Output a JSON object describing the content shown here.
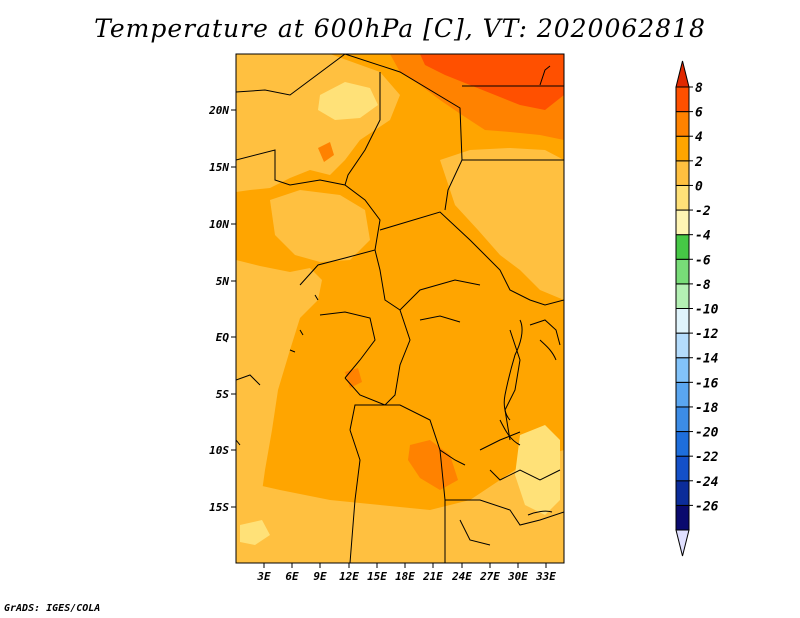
{
  "title": "Temperature at 600hPa [C], VT: 2020062818",
  "credit": "GrADS: IGES/COLA",
  "map": {
    "lat_labels": [
      "20N",
      "15N",
      "10N",
      "5N",
      "EQ",
      "5S",
      "10S",
      "15S"
    ],
    "lon_labels": [
      "3E",
      "6E",
      "9E",
      "12E",
      "15E",
      "18E",
      "21E",
      "24E",
      "27E",
      "30E",
      "33E"
    ]
  },
  "colorbar": {
    "levels": [
      "8",
      "6",
      "4",
      "2",
      "0",
      "-2",
      "-4",
      "-6",
      "-8",
      "-10",
      "-12",
      "-14",
      "-16",
      "-18",
      "-20",
      "-22",
      "-24",
      "-26"
    ],
    "colors": [
      "#e0e0ff",
      "#0a0a6e",
      "#0b2c9a",
      "#1450c8",
      "#1e6edc",
      "#3c8ce6",
      "#5aa6f0",
      "#82c3fa",
      "#b4dcfc",
      "#e0f4fc",
      "#b4f0b4",
      "#78dc78",
      "#46c846",
      "#fff5b4",
      "#ffe178",
      "#ffc040",
      "#ffa500",
      "#ff8200",
      "#ff5000",
      "#e02800"
    ]
  }
}
